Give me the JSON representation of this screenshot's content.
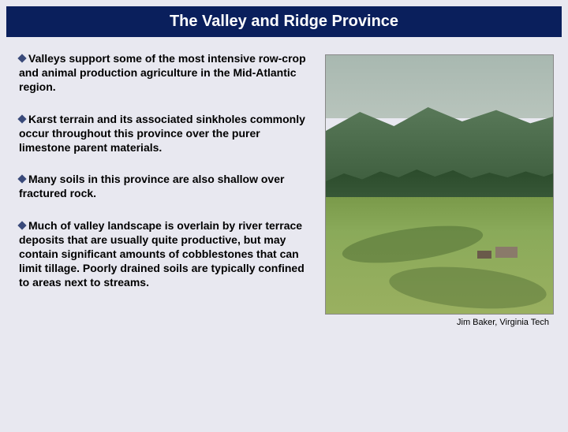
{
  "title": "The Valley and Ridge Province",
  "bullets": [
    "Valleys support some of the most intensive row-crop and animal production agriculture in the Mid-Atlantic region.",
    "Karst terrain and its associated sinkholes commonly occur throughout this province over the purer limestone parent materials.",
    "Many soils in this province are also shallow over fractured rock.",
    "Much of valley landscape is overlain by river terrace deposits that are usually quite productive, but may contain significant amounts of cobblestones that can limit tillage. Poorly drained soils are typically confined to areas next to streams."
  ],
  "image_caption": "Jim Baker, Virginia Tech"
}
